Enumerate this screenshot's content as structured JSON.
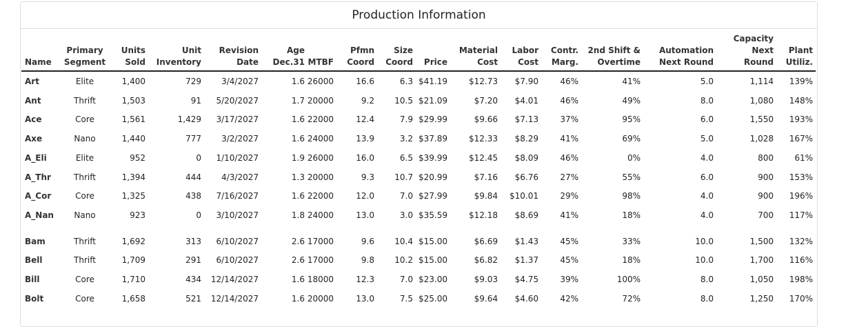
{
  "title": "Production Information",
  "table": {
    "headers": [
      [
        "Name"
      ],
      [
        "Primary",
        "Segment"
      ],
      [
        "Units",
        "Sold"
      ],
      [
        "Unit",
        "Inventory"
      ],
      [
        "Revision",
        "Date"
      ],
      [
        "Age",
        "Dec.31"
      ],
      [
        "MTBF"
      ],
      [
        "Pfmn",
        "Coord"
      ],
      [
        "Size",
        "Coord"
      ],
      [
        "Price"
      ],
      [
        "Material",
        "Cost"
      ],
      [
        "Labor",
        "Cost"
      ],
      [
        "Contr.",
        "Marg."
      ],
      [
        "2nd Shift &",
        "Overtime"
      ],
      [
        "Automation",
        "Next Round"
      ],
      [
        "Capacity",
        "Next",
        "Round"
      ],
      [
        "Plant",
        "Utiliz."
      ]
    ],
    "groups": [
      [
        [
          "Art",
          "Elite",
          "1,400",
          "729",
          "3/4/2027",
          "1.6",
          "26000",
          "16.6",
          "6.3",
          "$41.19",
          "$12.73",
          "$7.90",
          "46%",
          "41%",
          "5.0",
          "1,114",
          "139%"
        ],
        [
          "Ant",
          "Thrift",
          "1,503",
          "91",
          "5/20/2027",
          "1.7",
          "20000",
          "9.2",
          "10.5",
          "$21.09",
          "$7.20",
          "$4.01",
          "46%",
          "49%",
          "8.0",
          "1,080",
          "148%"
        ],
        [
          "Ace",
          "Core",
          "1,561",
          "1,429",
          "3/17/2027",
          "1.6",
          "22000",
          "12.4",
          "7.9",
          "$29.99",
          "$9.66",
          "$7.13",
          "37%",
          "95%",
          "6.0",
          "1,550",
          "193%"
        ],
        [
          "Axe",
          "Nano",
          "1,440",
          "777",
          "3/2/2027",
          "1.6",
          "24000",
          "13.9",
          "3.2",
          "$37.89",
          "$12.33",
          "$8.29",
          "41%",
          "69%",
          "5.0",
          "1,028",
          "167%"
        ],
        [
          "A_Eli",
          "Elite",
          "952",
          "0",
          "1/10/2027",
          "1.9",
          "26000",
          "16.0",
          "6.5",
          "$39.99",
          "$12.45",
          "$8.09",
          "46%",
          "0%",
          "4.0",
          "800",
          "61%"
        ],
        [
          "A_Thr",
          "Thrift",
          "1,394",
          "444",
          "4/3/2027",
          "1.3",
          "20000",
          "9.3",
          "10.7",
          "$20.99",
          "$7.16",
          "$6.76",
          "27%",
          "55%",
          "6.0",
          "900",
          "153%"
        ],
        [
          "A_Cor",
          "Core",
          "1,325",
          "438",
          "7/16/2027",
          "1.6",
          "22000",
          "12.0",
          "7.0",
          "$27.99",
          "$9.84",
          "$10.01",
          "29%",
          "98%",
          "4.0",
          "900",
          "196%"
        ],
        [
          "A_Nan",
          "Nano",
          "923",
          "0",
          "3/10/2027",
          "1.8",
          "24000",
          "13.0",
          "3.0",
          "$35.59",
          "$12.18",
          "$8.69",
          "41%",
          "18%",
          "4.0",
          "700",
          "117%"
        ]
      ],
      [
        [
          "Bam",
          "Thrift",
          "1,692",
          "313",
          "6/10/2027",
          "2.6",
          "17000",
          "9.6",
          "10.4",
          "$15.00",
          "$6.69",
          "$1.43",
          "45%",
          "33%",
          "10.0",
          "1,500",
          "132%"
        ],
        [
          "Bell",
          "Thrift",
          "1,709",
          "291",
          "6/10/2027",
          "2.6",
          "17000",
          "9.8",
          "10.2",
          "$15.00",
          "$6.82",
          "$1.37",
          "45%",
          "18%",
          "10.0",
          "1,700",
          "116%"
        ],
        [
          "Bill",
          "Core",
          "1,710",
          "434",
          "12/14/2027",
          "1.6",
          "18000",
          "12.3",
          "7.0",
          "$23.00",
          "$9.03",
          "$4.75",
          "39%",
          "100%",
          "8.0",
          "1,050",
          "198%"
        ],
        [
          "Bolt",
          "Core",
          "1,658",
          "521",
          "12/14/2027",
          "1.6",
          "20000",
          "13.0",
          "7.5",
          "$25.00",
          "$9.64",
          "$4.60",
          "42%",
          "72%",
          "8.0",
          "1,250",
          "170%"
        ]
      ]
    ]
  }
}
